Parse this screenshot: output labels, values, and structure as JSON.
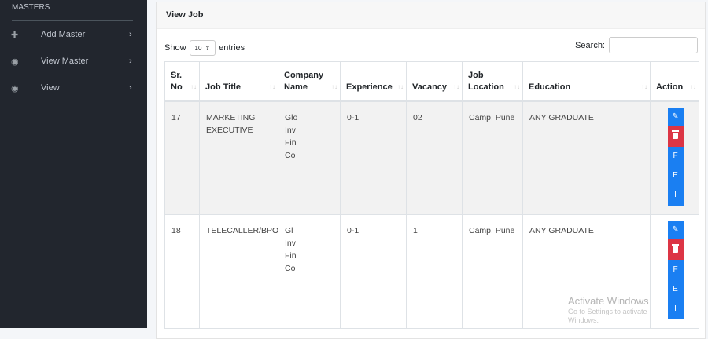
{
  "sidebar": {
    "heading": "MASTERS",
    "items": [
      {
        "label": "Add Master",
        "icon": "plus-icon"
      },
      {
        "label": "View Master",
        "icon": "eye-icon"
      },
      {
        "label": "View",
        "icon": "eye-icon"
      }
    ]
  },
  "card": {
    "title": "View Job"
  },
  "controls": {
    "show_label": "Show",
    "entries_value": "10",
    "entries_label": "entries",
    "search_label": "Search:",
    "search_value": ""
  },
  "table": {
    "headers": [
      "Sr. No",
      "Job Title",
      "Company Name",
      "Experience",
      "Vacancy",
      "Job Location",
      "Education",
      "Action"
    ],
    "rows": [
      {
        "sr": "17",
        "title": "MARKETING EXECUTIVE",
        "company": [
          "Glo",
          "Inv",
          "Fin",
          "Co"
        ],
        "experience": "0-1",
        "vacancy": "02",
        "location": "Camp, Pune",
        "education": "ANY GRADUATE"
      },
      {
        "sr": "18",
        "title": "TELECALLER/BPO",
        "company": [
          "Gl",
          "Inv",
          "Fin",
          "Co"
        ],
        "experience": "0-1",
        "vacancy": "1",
        "location": "Camp, Pune",
        "education": "ANY GRADUATE"
      }
    ],
    "action_labels": [
      "F",
      "E",
      "I"
    ]
  },
  "colors": {
    "primary": "#1a7ff2",
    "danger": "#dc3545",
    "sidebar": "#22262e"
  },
  "watermark": {
    "line1": "Activate Windows",
    "line2": "Go to Settings to activate Windows."
  }
}
